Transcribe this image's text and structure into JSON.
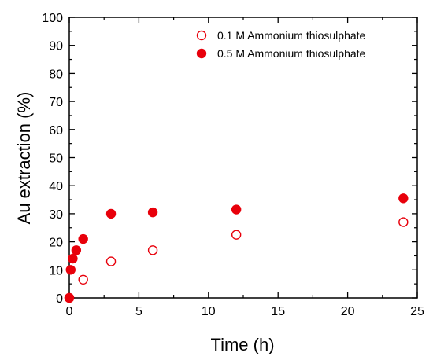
{
  "chart_data": {
    "type": "scatter",
    "xlabel": "Time (h)",
    "ylabel": "Au extraction (%)",
    "xlim": [
      0,
      25
    ],
    "ylim": [
      0,
      100
    ],
    "xticks": [
      0,
      5,
      10,
      15,
      20,
      25
    ],
    "yticks": [
      0,
      10,
      20,
      30,
      40,
      50,
      60,
      70,
      80,
      90,
      100
    ],
    "grid": false,
    "legend_position": "top-right",
    "series": [
      {
        "name": "0.1 M Ammonium thiosulphate",
        "marker": "open-circle",
        "color": "#e8000b",
        "x": [
          0,
          1,
          3,
          6,
          12,
          24
        ],
        "y": [
          0,
          6.5,
          13,
          17,
          22.5,
          27
        ]
      },
      {
        "name": "0.5 M Ammonium thiosulphate",
        "marker": "filled-circle",
        "color": "#e8000b",
        "x": [
          0,
          0.1,
          0.25,
          0.5,
          1,
          3,
          6,
          12,
          24
        ],
        "y": [
          0,
          10,
          14,
          17,
          21,
          30,
          30.5,
          31.5,
          35.5
        ]
      }
    ]
  }
}
